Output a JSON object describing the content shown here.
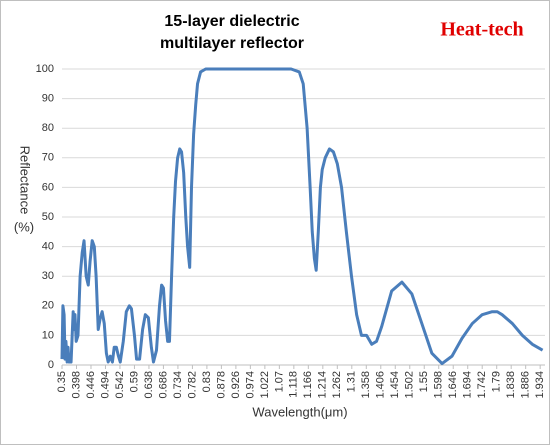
{
  "chart_data": {
    "type": "line",
    "title": [
      "15-layer dielectric",
      "multilayer reflector"
    ],
    "watermark": "Heat-tech",
    "y_label": [
      "Reflectance",
      "(%)"
    ],
    "x_label": "Wavelength(μm)",
    "color": "#4a7ebb",
    "grid": true,
    "xlim": [
      0.35,
      1.95
    ],
    "ylim": [
      0,
      100
    ],
    "yticks": [
      0,
      10,
      20,
      30,
      40,
      50,
      60,
      70,
      80,
      90,
      100
    ],
    "xticks": [
      0.35,
      0.398,
      0.446,
      0.494,
      0.542,
      0.59,
      0.638,
      0.686,
      0.734,
      0.782,
      0.83,
      0.878,
      0.926,
      0.974,
      1.022,
      1.07,
      1.118,
      1.166,
      1.214,
      1.262,
      1.31,
      1.358,
      1.406,
      1.454,
      1.502,
      1.55,
      1.598,
      1.646,
      1.694,
      1.742,
      1.79,
      1.838,
      1.886,
      1.934
    ],
    "x": [
      0.35,
      0.353,
      0.357,
      0.36,
      0.363,
      0.367,
      0.37,
      0.373,
      0.38,
      0.387,
      0.39,
      0.393,
      0.397,
      0.403,
      0.41,
      0.417,
      0.423,
      0.43,
      0.437,
      0.443,
      0.45,
      0.457,
      0.463,
      0.47,
      0.477,
      0.483,
      0.49,
      0.497,
      0.503,
      0.51,
      0.517,
      0.523,
      0.53,
      0.537,
      0.543,
      0.553,
      0.563,
      0.573,
      0.58,
      0.59,
      0.597,
      0.607,
      0.617,
      0.626,
      0.636,
      0.646,
      0.653,
      0.663,
      0.673,
      0.68,
      0.686,
      0.693,
      0.7,
      0.706,
      0.713,
      0.72,
      0.726,
      0.733,
      0.74,
      0.746,
      0.753,
      0.76,
      0.766,
      0.773,
      0.779,
      0.786,
      0.793,
      0.799,
      0.809,
      0.826,
      1.009,
      1.109,
      1.136,
      1.149,
      1.162,
      1.172,
      1.179,
      1.186,
      1.192,
      1.199,
      1.206,
      1.212,
      1.222,
      1.236,
      1.249,
      1.262,
      1.276,
      1.292,
      1.309,
      1.326,
      1.342,
      1.359,
      1.376,
      1.392,
      1.409,
      1.442,
      1.476,
      1.509,
      1.542,
      1.575,
      1.609,
      1.642,
      1.675,
      1.709,
      1.742,
      1.775,
      1.792,
      1.808,
      1.842,
      1.875,
      1.908,
      1.942
    ],
    "values": [
      2,
      20,
      17,
      2,
      8,
      1,
      6,
      1,
      1,
      18,
      12,
      17,
      8,
      10,
      30,
      38,
      42,
      30,
      27,
      35,
      42,
      40,
      30,
      12,
      16,
      18,
      14,
      4,
      1,
      3,
      1,
      6,
      6,
      3,
      1,
      8,
      18,
      20,
      19,
      10,
      2,
      2,
      12,
      17,
      16,
      6,
      1,
      5,
      20,
      27,
      26,
      15,
      8,
      8,
      30,
      50,
      62,
      70,
      73,
      72,
      65,
      50,
      40,
      33,
      60,
      78,
      88,
      95,
      99,
      100,
      100,
      100,
      99,
      95,
      80,
      60,
      45,
      36,
      32,
      45,
      60,
      66,
      70,
      73,
      72,
      68,
      60,
      45,
      30,
      17,
      10,
      10,
      7,
      8,
      13,
      25,
      28,
      24,
      14,
      4,
      0.5,
      3,
      9,
      14,
      17,
      18,
      18,
      17,
      14,
      10,
      7,
      5
    ]
  }
}
